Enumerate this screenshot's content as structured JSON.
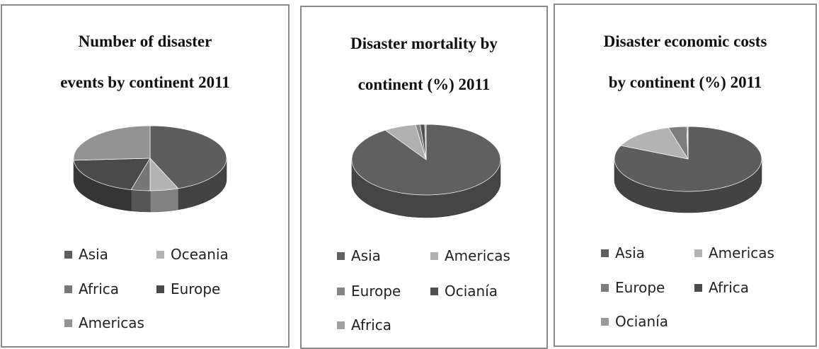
{
  "chart_data": [
    {
      "type": "pie",
      "title_lines": [
        "Number of disaster",
        "events by continent 2011"
      ],
      "slices": [
        {
          "label": "Asia",
          "value": 44,
          "color": "#5d5d5d"
        },
        {
          "label": "Oceania",
          "value": 6,
          "color": "#b3b3b3"
        },
        {
          "label": "Africa",
          "value": 4,
          "color": "#777777"
        },
        {
          "label": "Europe",
          "value": 20,
          "color": "#4a4a4a"
        },
        {
          "label": "Americas",
          "value": 26,
          "color": "#939393"
        }
      ],
      "legend": [
        "Asia",
        "Oceania",
        "Africa",
        "Europe",
        "Americas"
      ]
    },
    {
      "type": "pie",
      "title_lines": [
        "Disaster mortality by",
        "continent (%) 2011"
      ],
      "slices": [
        {
          "label": "Asia",
          "value": 91,
          "color": "#606060"
        },
        {
          "label": "Americas",
          "value": 7,
          "color": "#b0b0b0"
        },
        {
          "label": "Europe",
          "value": 1,
          "color": "#858585"
        },
        {
          "label": "Ocianía",
          "value": 1,
          "color": "#4f4f4f"
        },
        {
          "label": "Africa",
          "value": 0.3,
          "color": "#a0a0a0"
        }
      ],
      "legend": [
        "Asia",
        "Americas",
        "Europe",
        "Ocianía",
        "Africa"
      ]
    },
    {
      "type": "pie",
      "title_lines": [
        "Disaster economic costs",
        "by continent (%) 2011"
      ],
      "slices": [
        {
          "label": "Asia",
          "value": 82,
          "color": "#5d5d5d"
        },
        {
          "label": "Americas",
          "value": 14,
          "color": "#b3b3b3"
        },
        {
          "label": "Europe",
          "value": 4,
          "color": "#7d7d7d"
        },
        {
          "label": "Africa",
          "value": 0.2,
          "color": "#4a4a4a"
        },
        {
          "label": "Ocianía",
          "value": 0.1,
          "color": "#9a9a9a"
        }
      ],
      "legend": [
        "Asia",
        "Americas",
        "Europe",
        "Africa",
        "Ocianía"
      ]
    }
  ]
}
